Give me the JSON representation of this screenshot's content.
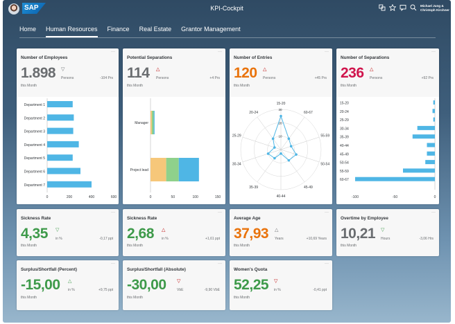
{
  "shell": {
    "app_title": "KPI-Cockpit",
    "logo_text": "SAP",
    "user_line1": "Michael Jung &",
    "user_line2": "Christoph Kirchner",
    "icons": [
      "people-icon",
      "star-icon",
      "notification-icon",
      "search-icon"
    ]
  },
  "nav": {
    "tabs": [
      "Home",
      "Human Resources",
      "Finance",
      "Real Estate",
      "Grantor Management"
    ],
    "active_tab": "Human Resources"
  },
  "tiles": {
    "employees": {
      "title": "Number of Employees",
      "value": "1.898",
      "trend": "down",
      "unit": "Persons",
      "delta": "-104 Prs",
      "period": "this Month"
    },
    "separations_potential": {
      "title": "Potential Separations",
      "value": "114",
      "trend": "up",
      "unit": "Persons",
      "delta": "+4 Prs",
      "period": "this Month"
    },
    "entries": {
      "title": "Number of Entries",
      "value": "120",
      "trend": "up",
      "unit": "Persons",
      "delta": "+45 Prs",
      "period": "this Month"
    },
    "separations": {
      "title": "Number of Separations",
      "value": "236",
      "trend": "up",
      "unit": "Persons",
      "delta": "+92 Prs",
      "period": "this Month"
    },
    "sickness1": {
      "title": "Sickness Rate",
      "value": "4,35",
      "trend": "down",
      "unit": "in %",
      "delta": "-0,17 ppt",
      "period": "this Month"
    },
    "sickness2": {
      "title": "Sickness Rate",
      "value": "2,68",
      "trend": "up",
      "unit": "in %",
      "delta": "+1,61 ppt",
      "period": "this Month"
    },
    "age": {
      "title": "Average Age",
      "value": "37,93",
      "trend": "up",
      "unit": "Years",
      "delta": "+10,69 Years",
      "period": "this Month"
    },
    "overtime": {
      "title": "Overtime by Employee",
      "value": "10,21",
      "trend": "down",
      "unit": "Hours",
      "delta": "-3,06 Hrs",
      "period": "this Month"
    },
    "surplus_pct": {
      "title": "Surplus/Shortfall (Percent)",
      "value": "-15,00",
      "trend": "up",
      "unit": "in %",
      "delta": "+9,75 ppt",
      "period": "this Month"
    },
    "surplus_abs": {
      "title": "Surplus/Shortfall (Absolute)",
      "value": "-30,00",
      "trend": "down",
      "unit": "VbE",
      "delta": "-9,90 VbE",
      "period": "this Month"
    },
    "womens_quota": {
      "title": "Women's Quota",
      "value": "52,25",
      "trend": "down",
      "unit": "in %",
      "delta": "-0,41 ppt",
      "period": "this Month"
    }
  },
  "colors": {
    "bar_blue": "#4fb6e5",
    "kpi_grey": "#6a6d70",
    "kpi_orange": "#e9730c",
    "kpi_crimson": "#d0154d",
    "kpi_green": "#3e9a4a",
    "stack_orange": "#f6c77a",
    "stack_green": "#8fd18b",
    "stack_blue": "#4fb6e5"
  },
  "chart_data": [
    {
      "type": "bar",
      "orientation": "horizontal",
      "categories": [
        "Department 1",
        "Department 2",
        "Department 3",
        "Department 4",
        "Department 5",
        "Department 6",
        "Department 7"
      ],
      "values": [
        230,
        240,
        235,
        285,
        230,
        300,
        400
      ],
      "xlim": [
        0,
        600
      ],
      "xticks": [
        0,
        200,
        400,
        600
      ],
      "grid": false
    },
    {
      "type": "bar",
      "orientation": "horizontal",
      "stacked": true,
      "categories": [
        "Manager",
        "Project lead"
      ],
      "series": [
        {
          "color": "#f6c77a",
          "values": [
            3,
            35
          ]
        },
        {
          "color": "#8fd18b",
          "values": [
            4,
            28
          ]
        },
        {
          "color": "#4fb6e5",
          "values": [
            2,
            45
          ]
        }
      ],
      "xlim": [
        0,
        150
      ],
      "xticks": [
        0,
        50,
        100,
        150
      ],
      "grid": false
    },
    {
      "type": "radar",
      "axes": [
        "15-20",
        "60-67",
        "55-59",
        "50-54",
        "45-49",
        "40-44",
        "35-39",
        "30-34",
        "25-29",
        "20-24"
      ],
      "values": [
        25,
        10,
        8,
        12,
        10,
        3,
        8,
        10,
        5,
        10
      ],
      "rings": [
        10,
        20,
        30
      ],
      "grid": true
    },
    {
      "type": "bar",
      "orientation": "horizontal",
      "categories": [
        "15-20",
        "20-24",
        "25-29",
        "30-34",
        "35-39",
        "40-44",
        "45-49",
        "50-54",
        "55-59",
        "60-67"
      ],
      "values": [
        -2,
        -3,
        -2,
        -22,
        -28,
        -10,
        -10,
        -12,
        -40,
        -100
      ],
      "xlim": [
        -100,
        0
      ],
      "xticks": [
        -100,
        -50,
        0
      ],
      "grid": false
    }
  ]
}
